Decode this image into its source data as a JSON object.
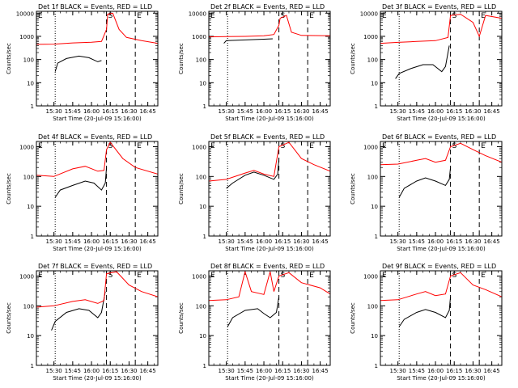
{
  "figure": {
    "background": "#ffffff"
  },
  "colors": {
    "events": "#000000",
    "lld": "#ff0000",
    "axis": "#000000"
  },
  "common": {
    "ylabel": "Counts/sec",
    "xlabel": "Start Time (20-Jul-09 15:16:00)",
    "xticks": [
      "15:30",
      "15:45",
      "16:00",
      "16:15",
      "16:30",
      "16:45"
    ],
    "yticks": [
      "1",
      "10",
      "100",
      "1000",
      "10000"
    ],
    "marker_s": "S",
    "marker_e": "E"
  },
  "chart_data": [
    {
      "type": "line",
      "title": "Det 1f BLACK = Events, RED = LLD",
      "yscale": "log",
      "ylim": [
        1,
        12000
      ],
      "x_time_range": [
        "15:16",
        "16:53"
      ],
      "markers": {
        "dotted": "15:31",
        "s_dashed": "16:12",
        "e_dashed": "16:35"
      },
      "series": [
        {
          "role": "events",
          "points": [
            [
              "15:31",
              30
            ],
            [
              "15:33",
              70
            ],
            [
              "15:40",
              110
            ],
            [
              "15:50",
              140
            ],
            [
              "15:58",
              120
            ],
            [
              "16:05",
              80
            ],
            [
              "16:08",
              90
            ]
          ]
        },
        {
          "role": "lld",
          "points": [
            [
              "15:16",
              450
            ],
            [
              "15:30",
              460
            ],
            [
              "15:45",
              520
            ],
            [
              "16:00",
              560
            ],
            [
              "16:08",
              600
            ],
            [
              "16:12",
              2000
            ],
            [
              "16:13",
              9000
            ],
            [
              "16:17",
              10000
            ],
            [
              "16:22",
              2000
            ],
            [
              "16:28",
              900
            ],
            [
              "16:40",
              650
            ],
            [
              "16:53",
              500
            ]
          ]
        }
      ]
    },
    {
      "type": "line",
      "title": "Det 2f BLACK = Events, RED = LLD",
      "yscale": "log",
      "ylim": [
        1,
        12000
      ],
      "x_time_range": [
        "15:16",
        "16:53"
      ],
      "markers": {
        "dotted": "15:31",
        "s_dashed": "16:12",
        "e_dashed": "16:35"
      },
      "series": [
        {
          "role": "events",
          "points": [
            [
              "15:28",
              500
            ],
            [
              "15:30",
              650
            ],
            [
              "15:45",
              700
            ],
            [
              "16:00",
              750
            ],
            [
              "16:07",
              780
            ]
          ]
        },
        {
          "role": "lld",
          "points": [
            [
              "15:16",
              950
            ],
            [
              "15:30",
              970
            ],
            [
              "15:45",
              1000
            ],
            [
              "16:00",
              1050
            ],
            [
              "16:08",
              1200
            ],
            [
              "16:12",
              3000
            ],
            [
              "16:13",
              6000
            ],
            [
              "16:18",
              8000
            ],
            [
              "16:22",
              1500
            ],
            [
              "16:30",
              1100
            ],
            [
              "16:53",
              1050
            ]
          ]
        }
      ]
    },
    {
      "type": "line",
      "title": "Det 3f BLACK = Events, RED = LLD",
      "yscale": "log",
      "ylim": [
        1,
        12000
      ],
      "x_time_range": [
        "15:16",
        "16:53"
      ],
      "markers": {
        "dotted": "15:31",
        "s_dashed": "16:12",
        "e_dashed": "16:35"
      },
      "series": [
        {
          "role": "events",
          "points": [
            [
              "15:28",
              15
            ],
            [
              "15:31",
              25
            ],
            [
              "15:40",
              40
            ],
            [
              "15:50",
              60
            ],
            [
              "15:58",
              60
            ],
            [
              "16:05",
              30
            ],
            [
              "16:08",
              50
            ],
            [
              "16:11",
              400
            ]
          ]
        },
        {
          "role": "lld",
          "points": [
            [
              "15:16",
              500
            ],
            [
              "15:30",
              550
            ],
            [
              "15:45",
              600
            ],
            [
              "16:00",
              650
            ],
            [
              "16:10",
              900
            ],
            [
              "16:12",
              8000
            ],
            [
              "16:20",
              9000
            ],
            [
              "16:30",
              4000
            ],
            [
              "16:35",
              1000
            ],
            [
              "16:40",
              8000
            ],
            [
              "16:53",
              6000
            ]
          ]
        }
      ]
    },
    {
      "type": "line",
      "title": "Det 4f BLACK = Events, RED = LLD",
      "yscale": "log",
      "ylim": [
        1,
        1500
      ],
      "x_time_range": [
        "15:16",
        "16:53"
      ],
      "markers": {
        "dotted": "15:31",
        "s_dashed": "16:12",
        "e_dashed": "16:35"
      },
      "series": [
        {
          "role": "events",
          "points": [
            [
              "15:31",
              20
            ],
            [
              "15:35",
              35
            ],
            [
              "15:45",
              50
            ],
            [
              "15:55",
              70
            ],
            [
              "16:02",
              60
            ],
            [
              "16:08",
              35
            ],
            [
              "16:11",
              60
            ],
            [
              "16:12",
              200
            ]
          ]
        },
        {
          "role": "lld",
          "points": [
            [
              "15:16",
              110
            ],
            [
              "15:30",
              100
            ],
            [
              "15:45",
              180
            ],
            [
              "15:55",
              220
            ],
            [
              "16:05",
              150
            ],
            [
              "16:10",
              160
            ],
            [
              "16:12",
              800
            ],
            [
              "16:15",
              1400
            ],
            [
              "16:25",
              400
            ],
            [
              "16:35",
              200
            ],
            [
              "16:53",
              120
            ]
          ]
        }
      ]
    },
    {
      "type": "line",
      "title": "Det 5f BLACK = Events, RED = LLD",
      "yscale": "log",
      "ylim": [
        1,
        1500
      ],
      "x_time_range": [
        "15:16",
        "16:53"
      ],
      "markers": {
        "dotted": "15:31",
        "s_dashed": "16:12",
        "e_dashed": "16:35"
      },
      "series": [
        {
          "role": "events",
          "points": [
            [
              "15:30",
              40
            ],
            [
              "15:35",
              60
            ],
            [
              "15:45",
              110
            ],
            [
              "15:52",
              140
            ],
            [
              "16:00",
              110
            ],
            [
              "16:08",
              80
            ],
            [
              "16:11",
              120
            ],
            [
              "16:12",
              400
            ]
          ]
        },
        {
          "role": "lld",
          "points": [
            [
              "15:16",
              70
            ],
            [
              "15:30",
              80
            ],
            [
              "15:45",
              130
            ],
            [
              "15:52",
              160
            ],
            [
              "16:00",
              120
            ],
            [
              "16:08",
              100
            ],
            [
              "16:12",
              1000
            ],
            [
              "16:20",
              1400
            ],
            [
              "16:30",
              400
            ],
            [
              "16:40",
              250
            ],
            [
              "16:53",
              150
            ]
          ]
        }
      ]
    },
    {
      "type": "line",
      "title": "Det 6f BLACK = Events, RED = LLD",
      "yscale": "log",
      "ylim": [
        1,
        1500
      ],
      "x_time_range": [
        "15:16",
        "16:53"
      ],
      "markers": {
        "dotted": "15:31",
        "s_dashed": "16:12",
        "e_dashed": "16:35"
      },
      "series": [
        {
          "role": "events",
          "points": [
            [
              "15:31",
              20
            ],
            [
              "15:35",
              40
            ],
            [
              "15:45",
              70
            ],
            [
              "15:52",
              90
            ],
            [
              "16:00",
              70
            ],
            [
              "16:08",
              50
            ],
            [
              "16:11",
              80
            ],
            [
              "16:12",
              200
            ]
          ]
        },
        {
          "role": "lld",
          "points": [
            [
              "15:16",
              250
            ],
            [
              "15:30",
              260
            ],
            [
              "15:45",
              350
            ],
            [
              "15:52",
              400
            ],
            [
              "16:00",
              300
            ],
            [
              "16:08",
              350
            ],
            [
              "16:12",
              1000
            ],
            [
              "16:20",
              1300
            ],
            [
              "16:30",
              800
            ],
            [
              "16:40",
              500
            ],
            [
              "16:53",
              300
            ]
          ]
        }
      ]
    },
    {
      "type": "line",
      "title": "Det 7f BLACK = Events, RED = LLD",
      "yscale": "log",
      "ylim": [
        1,
        1500
      ],
      "x_time_range": [
        "15:16",
        "16:53"
      ],
      "markers": {
        "dotted": "15:31",
        "s_dashed": "16:12",
        "e_dashed": "16:35"
      },
      "series": [
        {
          "role": "events",
          "points": [
            [
              "15:28",
              15
            ],
            [
              "15:31",
              30
            ],
            [
              "15:40",
              60
            ],
            [
              "15:50",
              80
            ],
            [
              "15:58",
              70
            ],
            [
              "16:05",
              40
            ],
            [
              "16:08",
              60
            ],
            [
              "16:11",
              300
            ]
          ]
        },
        {
          "role": "lld",
          "points": [
            [
              "15:16",
              90
            ],
            [
              "15:30",
              100
            ],
            [
              "15:45",
              140
            ],
            [
              "15:55",
              160
            ],
            [
              "16:05",
              120
            ],
            [
              "16:10",
              150
            ],
            [
              "16:12",
              1200
            ],
            [
              "16:20",
              1400
            ],
            [
              "16:30",
              500
            ],
            [
              "16:40",
              300
            ],
            [
              "16:53",
              200
            ]
          ]
        }
      ]
    },
    {
      "type": "line",
      "title": "Det 8f BLACK = Events, RED = LLD",
      "yscale": "log",
      "ylim": [
        1,
        1500
      ],
      "x_time_range": [
        "15:16",
        "16:53"
      ],
      "markers": {
        "dotted": "15:31",
        "s_dashed": "16:12",
        "e_dashed": "16:35"
      },
      "series": [
        {
          "role": "events",
          "points": [
            [
              "15:31",
              20
            ],
            [
              "15:35",
              40
            ],
            [
              "15:45",
              70
            ],
            [
              "15:55",
              80
            ],
            [
              "16:00",
              55
            ],
            [
              "16:05",
              40
            ],
            [
              "16:10",
              60
            ],
            [
              "16:12",
              200
            ]
          ]
        },
        {
          "role": "lld",
          "points": [
            [
              "15:16",
              150
            ],
            [
              "15:30",
              160
            ],
            [
              "15:40",
              200
            ],
            [
              "15:45",
              1400
            ],
            [
              "15:50",
              300
            ],
            [
              "16:00",
              240
            ],
            [
              "16:05",
              1400
            ],
            [
              "16:08",
              300
            ],
            [
              "16:12",
              1000
            ],
            [
              "16:20",
              1300
            ],
            [
              "16:30",
              600
            ],
            [
              "16:45",
              400
            ],
            [
              "16:53",
              250
            ]
          ]
        }
      ]
    },
    {
      "type": "line",
      "title": "Det 9f BLACK = Events, RED = LLD",
      "yscale": "log",
      "ylim": [
        1,
        1500
      ],
      "x_time_range": [
        "15:16",
        "16:53"
      ],
      "markers": {
        "dotted": "15:31",
        "s_dashed": "16:12",
        "e_dashed": "16:35"
      },
      "series": [
        {
          "role": "events",
          "points": [
            [
              "15:31",
              20
            ],
            [
              "15:35",
              35
            ],
            [
              "15:45",
              60
            ],
            [
              "15:52",
              75
            ],
            [
              "16:00",
              60
            ],
            [
              "16:08",
              40
            ],
            [
              "16:11",
              70
            ],
            [
              "16:12",
              200
            ]
          ]
        },
        {
          "role": "lld",
          "points": [
            [
              "15:16",
              150
            ],
            [
              "15:30",
              160
            ],
            [
              "15:45",
              250
            ],
            [
              "15:52",
              300
            ],
            [
              "16:00",
              220
            ],
            [
              "16:08",
              250
            ],
            [
              "16:12",
              1000
            ],
            [
              "16:20",
              1300
            ],
            [
              "16:30",
              500
            ],
            [
              "16:40",
              350
            ],
            [
              "16:53",
              200
            ]
          ]
        }
      ]
    }
  ]
}
